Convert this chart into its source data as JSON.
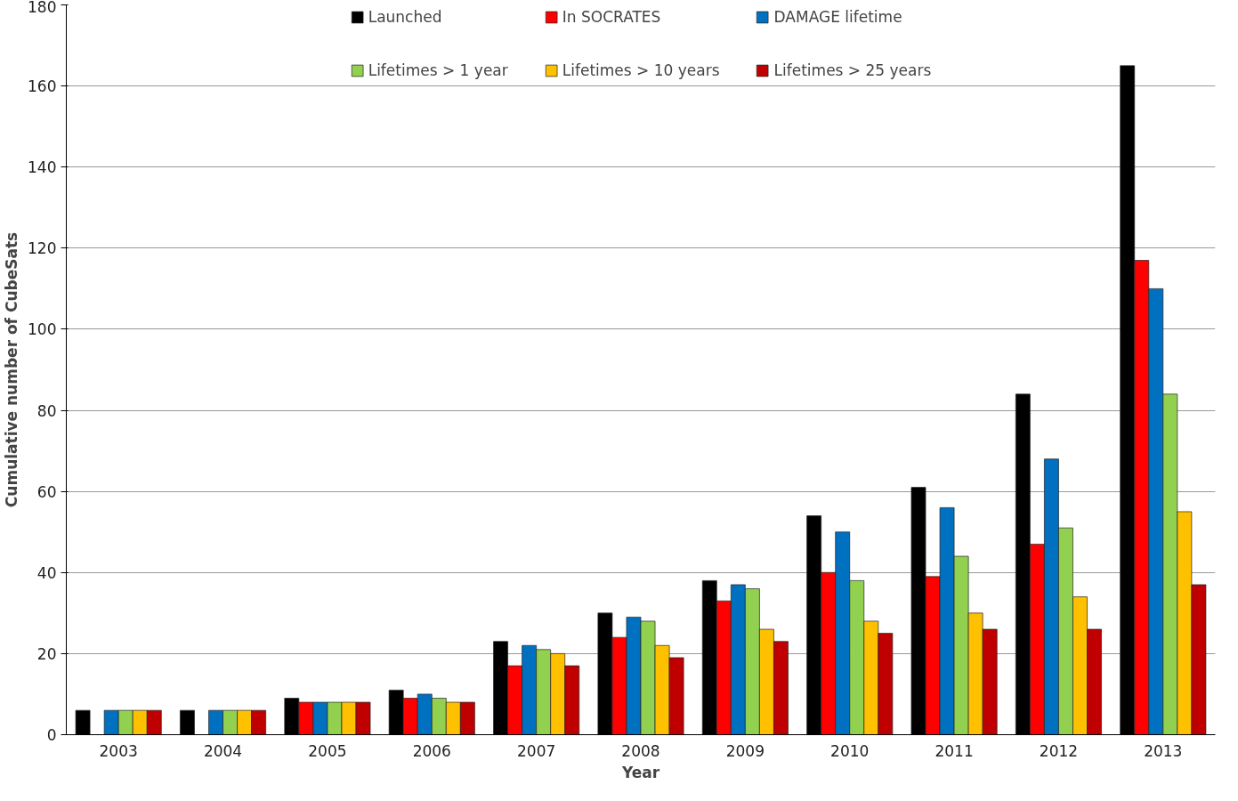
{
  "chart_data": {
    "type": "bar",
    "xlabel": "Year",
    "ylabel": "Cumulative number of CubeSats",
    "categories": [
      "2003",
      "2004",
      "2005",
      "2006",
      "2007",
      "2008",
      "2009",
      "2010",
      "2011",
      "2012",
      "2013"
    ],
    "series": [
      {
        "name": "Launched",
        "color": "#000000",
        "values": [
          6,
          6,
          9,
          11,
          23,
          30,
          38,
          54,
          61,
          84,
          165
        ]
      },
      {
        "name": "In SOCRATES",
        "color": "#ff0000",
        "values": [
          null,
          null,
          8,
          9,
          17,
          24,
          33,
          40,
          39,
          47,
          117
        ]
      },
      {
        "name": "DAMAGE lifetime",
        "color": "#0070c0",
        "values": [
          6,
          6,
          8,
          10,
          22,
          29,
          37,
          50,
          56,
          68,
          110
        ]
      },
      {
        "name": "Lifetimes > 1 year",
        "color": "#92d050",
        "values": [
          6,
          6,
          8,
          9,
          21,
          28,
          36,
          38,
          44,
          51,
          84
        ]
      },
      {
        "name": "Lifetimes > 10 years",
        "color": "#ffc000",
        "values": [
          6,
          6,
          8,
          8,
          20,
          22,
          26,
          28,
          30,
          34,
          55
        ]
      },
      {
        "name": "Lifetimes > 25 years",
        "color": "#c00000",
        "values": [
          6,
          6,
          8,
          8,
          17,
          19,
          23,
          25,
          26,
          26,
          37
        ]
      }
    ],
    "ylim": [
      0,
      180
    ],
    "yticks": [
      0,
      20,
      40,
      60,
      80,
      100,
      120,
      140,
      160,
      180
    ],
    "grid": "y",
    "legend": "top"
  }
}
